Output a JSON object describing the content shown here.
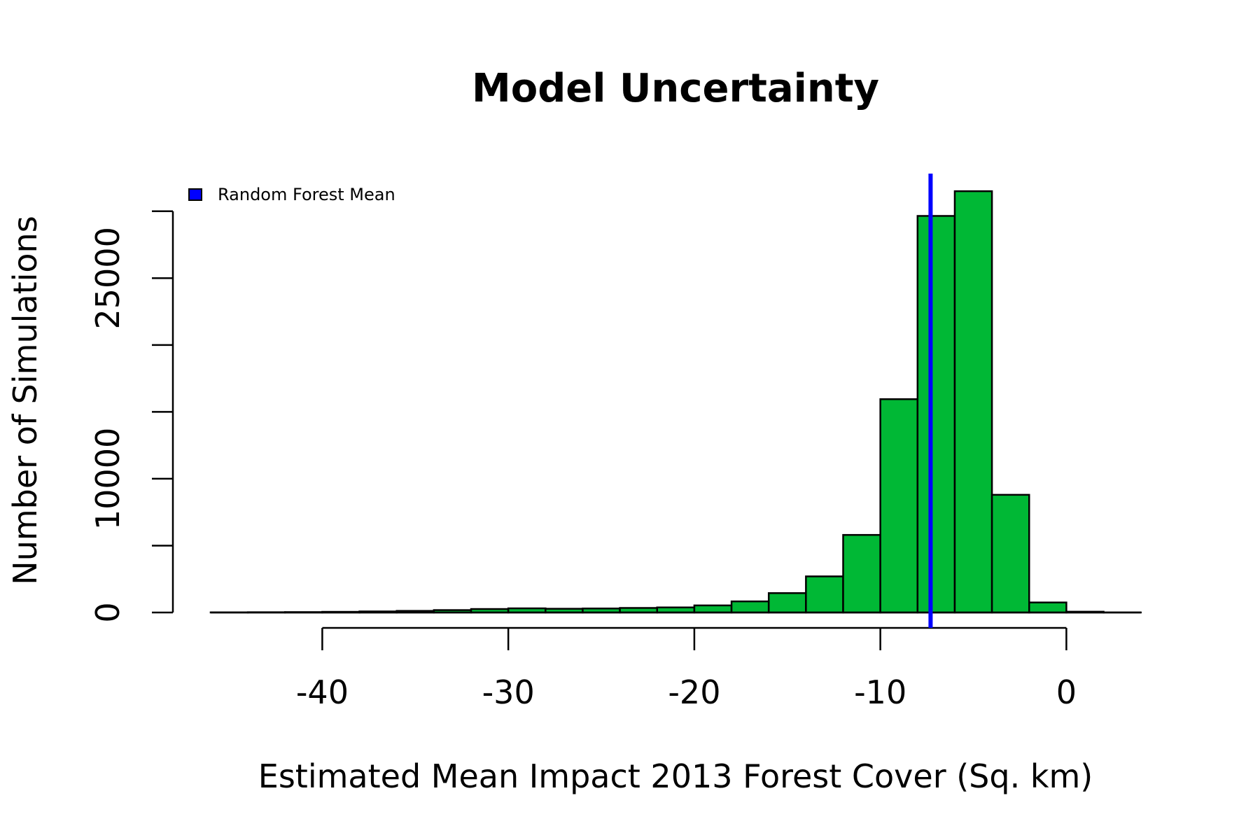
{
  "chart_data": {
    "type": "bar",
    "title": "Model Uncertainty",
    "xlabel": "Estimated Mean Impact 2013 Forest Cover (Sq. km)",
    "ylabel": "Number of Simulations",
    "bin_width": 2,
    "bins": [
      {
        "x0": -46,
        "x1": -44,
        "count": 10
      },
      {
        "x0": -44,
        "x1": -42,
        "count": 20
      },
      {
        "x0": -42,
        "x1": -40,
        "count": 30
      },
      {
        "x0": -40,
        "x1": -38,
        "count": 50
      },
      {
        "x0": -38,
        "x1": -36,
        "count": 80
      },
      {
        "x0": -36,
        "x1": -34,
        "count": 120
      },
      {
        "x0": -34,
        "x1": -32,
        "count": 180
      },
      {
        "x0": -32,
        "x1": -30,
        "count": 260
      },
      {
        "x0": -30,
        "x1": -28,
        "count": 310
      },
      {
        "x0": -28,
        "x1": -26,
        "count": 280
      },
      {
        "x0": -26,
        "x1": -24,
        "count": 300
      },
      {
        "x0": -24,
        "x1": -22,
        "count": 340
      },
      {
        "x0": -22,
        "x1": -20,
        "count": 380
      },
      {
        "x0": -20,
        "x1": -18,
        "count": 530
      },
      {
        "x0": -18,
        "x1": -16,
        "count": 830
      },
      {
        "x0": -16,
        "x1": -14,
        "count": 1450
      },
      {
        "x0": -14,
        "x1": -12,
        "count": 2700
      },
      {
        "x0": -12,
        "x1": -10,
        "count": 5800
      },
      {
        "x0": -10,
        "x1": -8,
        "count": 15950
      },
      {
        "x0": -8,
        "x1": -6,
        "count": 29650
      },
      {
        "x0": -6,
        "x1": -4,
        "count": 31500
      },
      {
        "x0": -4,
        "x1": -2,
        "count": 8800
      },
      {
        "x0": -2,
        "x1": 0,
        "count": 750
      },
      {
        "x0": 0,
        "x1": 2,
        "count": 60
      },
      {
        "x0": 2,
        "x1": 4,
        "count": 5
      }
    ],
    "mean_line": {
      "x": -7.3,
      "label": "Random Forest Mean",
      "color": "#0000ff"
    },
    "bar_color": "#00b835",
    "xlim": [
      -46,
      4
    ],
    "ylim": [
      0,
      30000
    ],
    "x_ticks": [
      -40,
      -30,
      -20,
      -10,
      0
    ],
    "x_tick_labels": [
      "-40",
      "-30",
      "-20",
      "-10",
      "0"
    ],
    "y_ticks": [
      0,
      5000,
      10000,
      15000,
      20000,
      25000,
      30000
    ],
    "y_tick_labels": [
      {
        "value": 0,
        "label": "0"
      },
      {
        "value": 10000,
        "label": "10000"
      },
      {
        "value": 25000,
        "label": "25000"
      }
    ],
    "grid": false,
    "legend": {
      "position": "top-left",
      "entries": [
        {
          "label": "Random Forest Mean",
          "color": "#0000ff"
        }
      ]
    }
  }
}
